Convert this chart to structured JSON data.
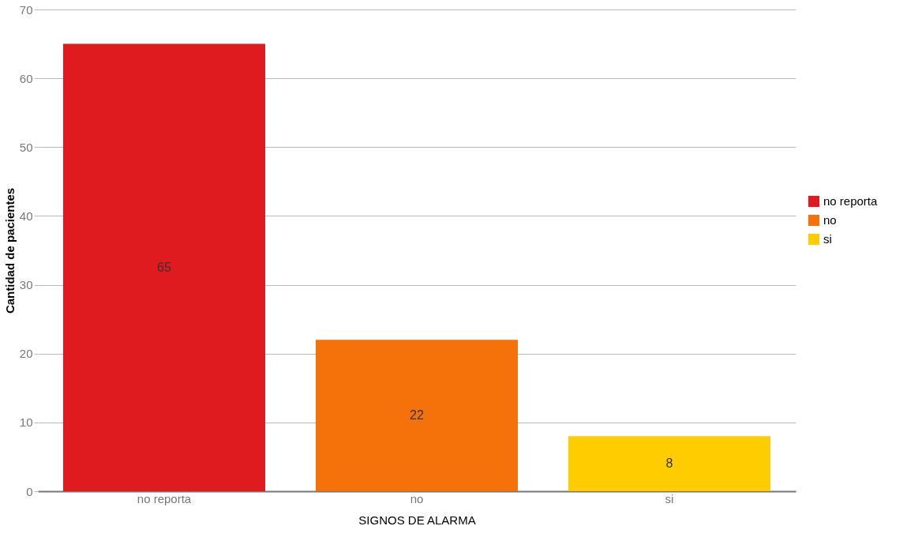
{
  "chart_data": {
    "type": "bar",
    "xlabel": "SIGNOS DE ALARMA",
    "ylabel": "Cantidad de pacientes",
    "categories": [
      "no reporta",
      "no",
      "si"
    ],
    "series": [
      {
        "name": "no reporta",
        "color": "#e01b1f",
        "values": [
          65,
          null,
          null
        ]
      },
      {
        "name": "no",
        "color": "#f5720a",
        "values": [
          null,
          22,
          null
        ]
      },
      {
        "name": "si",
        "color": "#ffcc00",
        "values": [
          null,
          null,
          8
        ]
      }
    ],
    "stacked": true,
    "ylim": [
      0,
      70
    ],
    "yticks": [
      0,
      10,
      20,
      30,
      40,
      50,
      60,
      70
    ],
    "grid": "y",
    "legend": "right",
    "data_labels": true
  }
}
